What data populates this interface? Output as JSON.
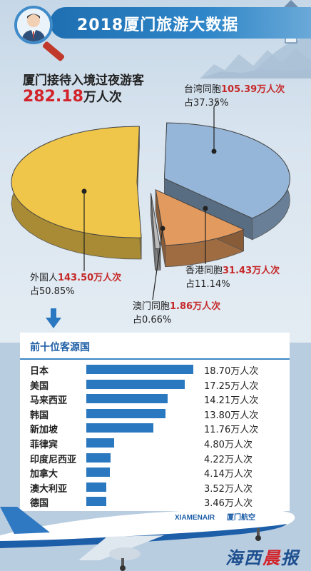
{
  "header": {
    "title": "2018厦门旅游大数据"
  },
  "summary": {
    "label": "厦门接待入境过夜游客",
    "value": "282.18",
    "unit": "万人次"
  },
  "chart_data": [
    {
      "type": "pie",
      "title": "",
      "unit": "万人次",
      "slices": [
        {
          "name": "外国人",
          "value": 143.5,
          "value_text": "143.50万人次",
          "percent": 50.85,
          "percent_text": "占50.85%",
          "color": "#f0c64a"
        },
        {
          "name": "台湾同胞",
          "value": 105.39,
          "value_text": "105.39万人次",
          "percent": 37.35,
          "percent_text": "占37.35%",
          "color": "#95b6d8"
        },
        {
          "name": "香港同胞",
          "value": 31.43,
          "value_text": "31.43万人次",
          "percent": 11.14,
          "percent_text": "占11.14%",
          "color": "#e39a5e"
        },
        {
          "name": "澳门同胞",
          "value": 1.86,
          "value_text": "1.86万人次",
          "percent": 0.66,
          "percent_text": "占0.66%",
          "color": "#bcbcbc"
        }
      ]
    },
    {
      "type": "bar",
      "title": "前十位客源国",
      "orientation": "horizontal",
      "unit": "万人次",
      "xlim": [
        0,
        18.7
      ],
      "categories": [
        "日本",
        "美国",
        "马来西亚",
        "韩国",
        "新加坡",
        "菲律宾",
        "印度尼西亚",
        "加拿大",
        "澳大利亚",
        "德国"
      ],
      "values": [
        18.7,
        17.25,
        14.21,
        13.8,
        11.76,
        4.8,
        4.22,
        4.14,
        3.52,
        3.46
      ],
      "value_labels": [
        "18.70万人次",
        "17.25万人次",
        "14.21万人次",
        "13.80万人次",
        "11.76万人次",
        "4.80万人次",
        "4.22万人次",
        "4.14万人次",
        "3.52万人次",
        "3.46万人次"
      ],
      "bar_color": "#2a78bf"
    }
  ],
  "airline": {
    "name": "XIAMENAIR",
    "name_cn": "厦门航空"
  },
  "brand": {
    "part1": "海西",
    "part2": "晨",
    "part3": "报"
  }
}
